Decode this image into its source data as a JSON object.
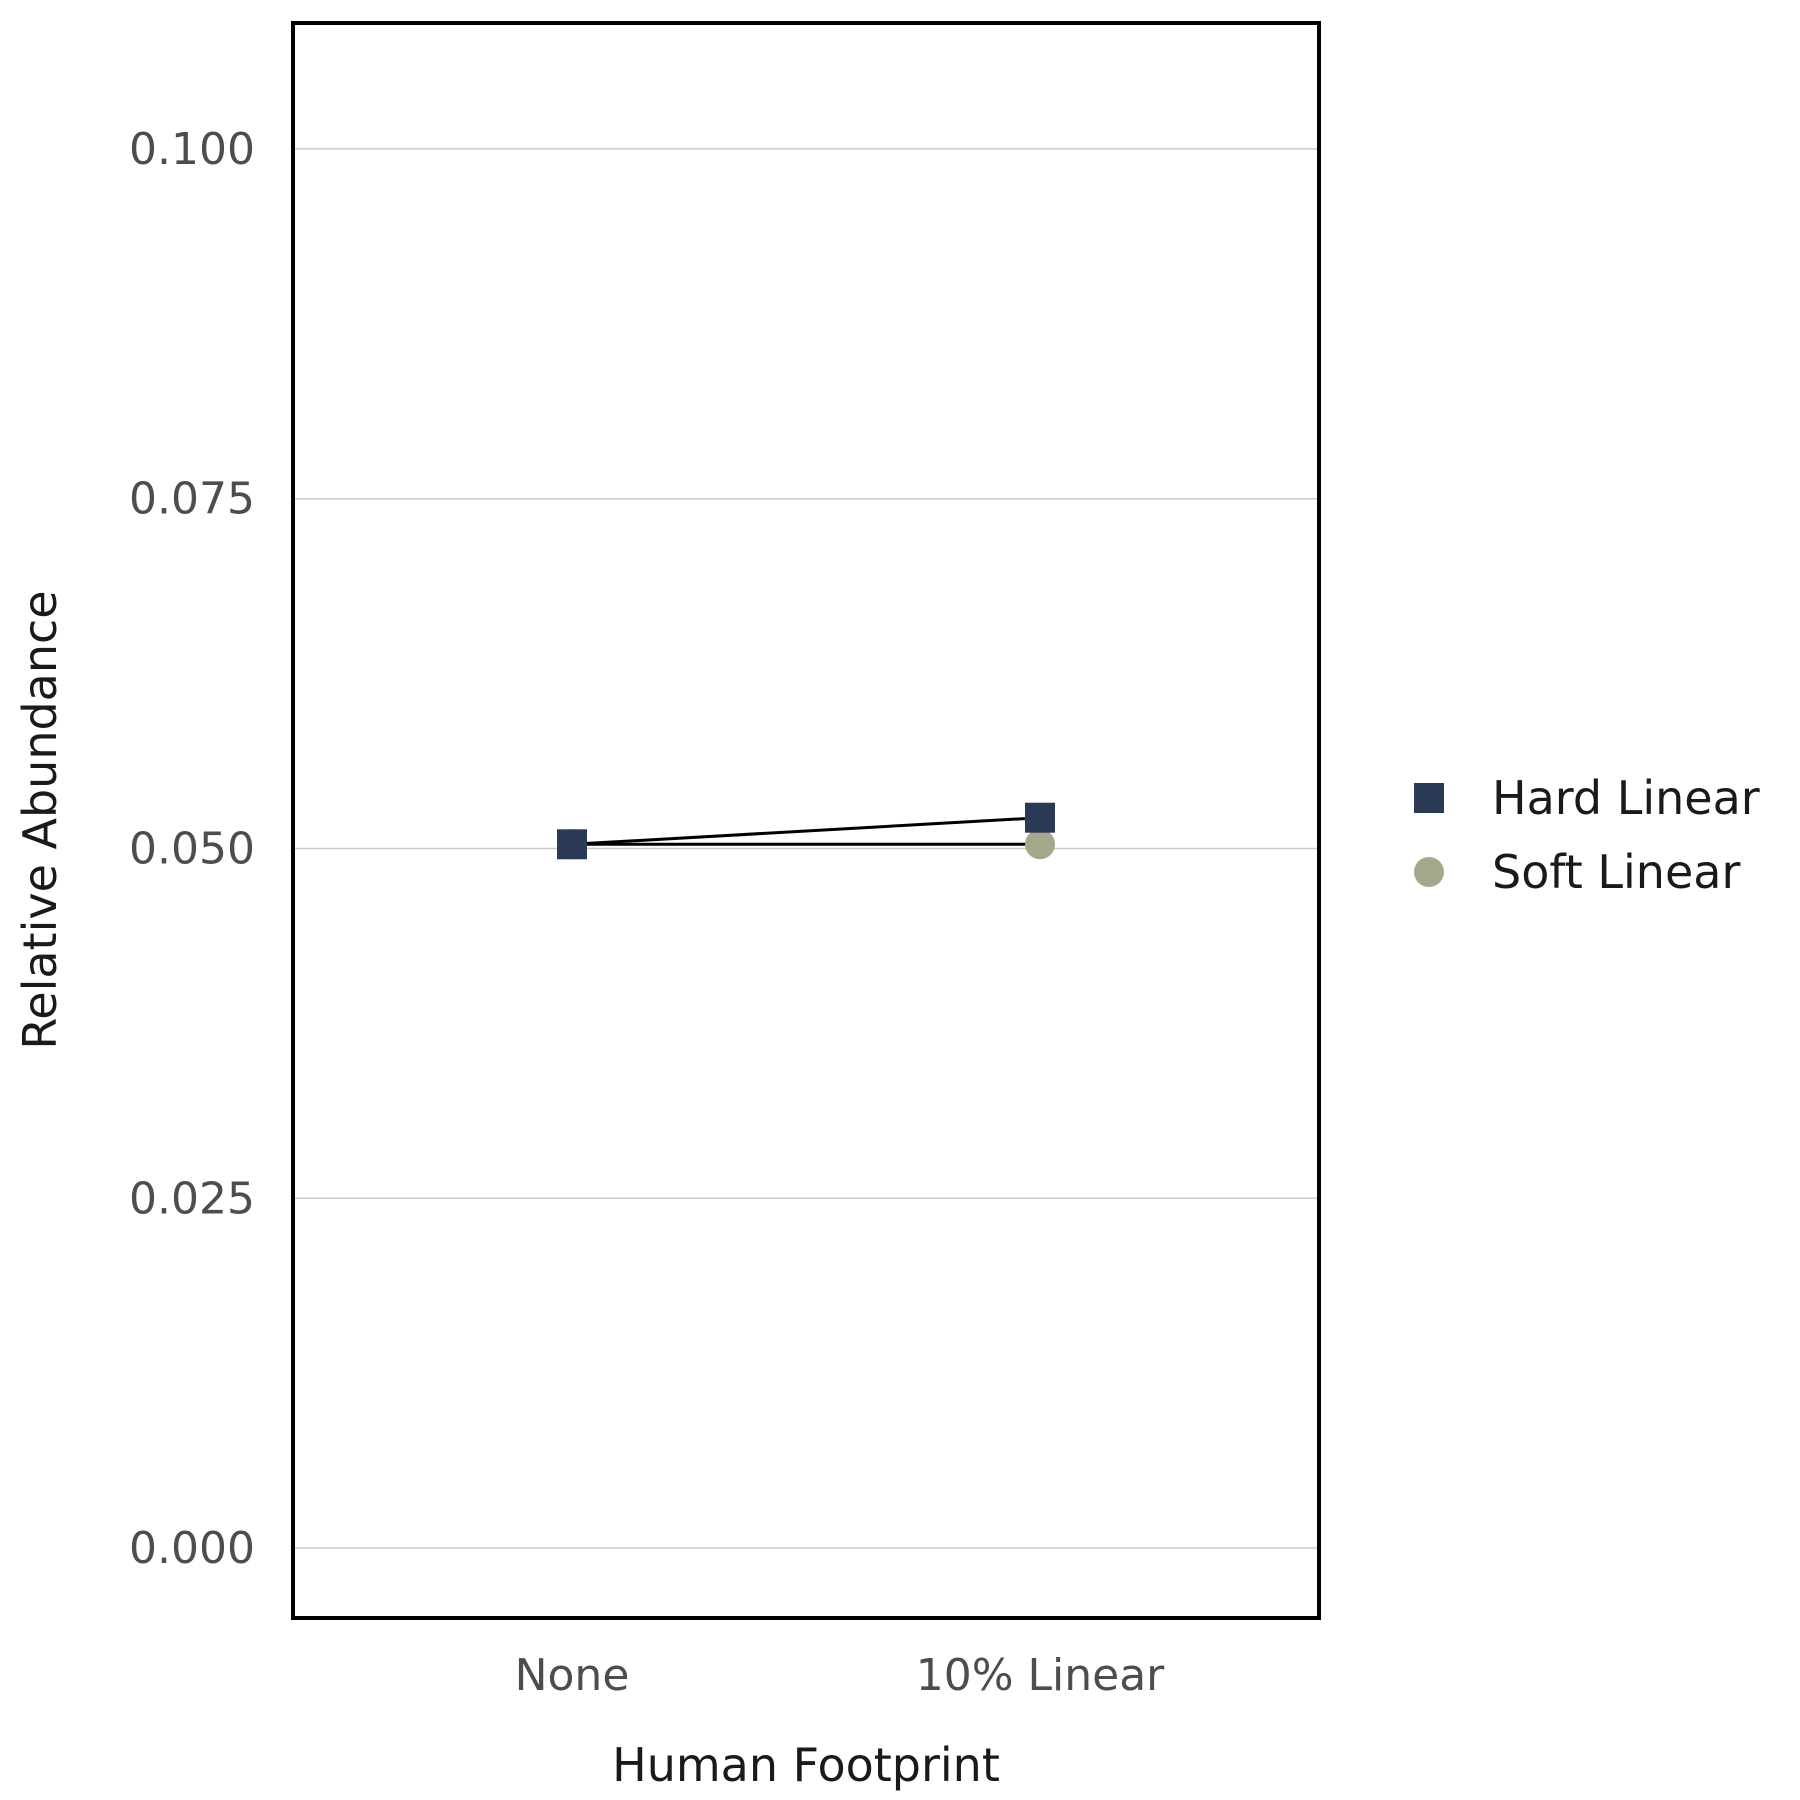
{
  "chart_data": {
    "type": "line",
    "title": "",
    "xlabel": "Human Footprint",
    "ylabel": "Relative Abundance",
    "categories": [
      "None",
      "10% Linear"
    ],
    "ylim": [
      -0.005,
      0.109
    ],
    "yticks": [
      0.0,
      0.025,
      0.05,
      0.075,
      0.1
    ],
    "ytick_labels": [
      "0.000",
      "0.025",
      "0.050",
      "0.075",
      "0.100"
    ],
    "grid": "horizontal",
    "legend_position": "right",
    "series": [
      {
        "name": "Hard Linear",
        "marker": "square",
        "color": "#2b3a55",
        "values": [
          0.0503,
          0.0522
        ]
      },
      {
        "name": "Soft Linear",
        "marker": "circle",
        "color": "#a3a98a",
        "values": [
          0.0503,
          0.0503
        ]
      }
    ]
  }
}
